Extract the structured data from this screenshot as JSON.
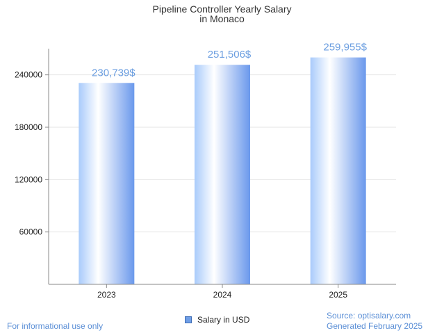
{
  "chart_data": {
    "type": "bar",
    "title_line1": "Pipeline Controller Yearly Salary",
    "title_line2": "in Monaco",
    "categories": [
      "2023",
      "2024",
      "2025"
    ],
    "series": [
      {
        "name": "Salary in USD",
        "values": [
          230739,
          251506,
          259955
        ],
        "labels": [
          "230,739$",
          "251,506$",
          "259,955$"
        ]
      }
    ],
    "y_ticks": [
      60000,
      120000,
      180000,
      240000
    ],
    "y_tick_labels": [
      "60000",
      "120000",
      "180000",
      "240000"
    ],
    "ylim": [
      0,
      270000
    ],
    "grid": true,
    "legend_position": "bottom",
    "colors": {
      "bar_light": "#ffffff",
      "bar_mid": "#b9d6fb",
      "bar_dark": "#6a98ec",
      "value_label": "#6b9ee0",
      "grid": "#e6e6e6",
      "axis": "#888888"
    }
  },
  "footer": {
    "left": "For informational use only",
    "source": "Source: optisalary.com",
    "generated": "Generated February 2025"
  }
}
